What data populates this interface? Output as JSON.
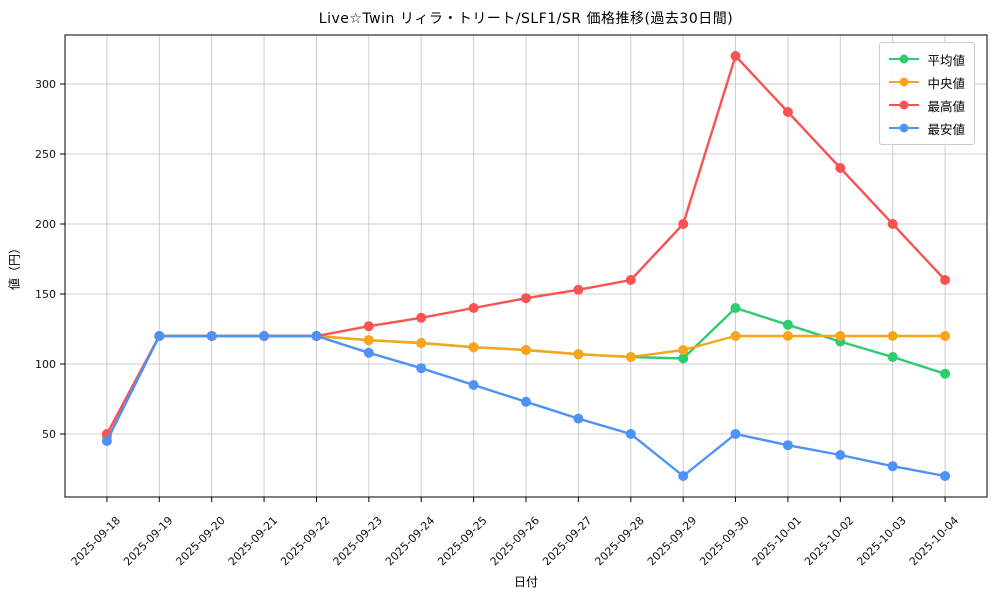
{
  "chart_data": {
    "type": "line",
    "title": "Live☆Twin リィラ・トリート/SLF1/SR 価格推移(過去30日間)",
    "xlabel": "日付",
    "ylabel": "値（円）",
    "x": [
      "2025-09-18",
      "2025-09-19",
      "2025-09-20",
      "2025-09-21",
      "2025-09-22",
      "2025-09-23",
      "2025-09-24",
      "2025-09-25",
      "2025-09-26",
      "2025-09-27",
      "2025-09-28",
      "2025-09-29",
      "2025-09-30",
      "2025-10-01",
      "2025-10-02",
      "2025-10-03",
      "2025-10-04"
    ],
    "series": [
      {
        "key": "average",
        "name": "平均値",
        "color": "#2ecc71",
        "values": [
          48,
          120,
          120,
          120,
          120,
          117,
          115,
          112,
          110,
          107,
          105,
          104,
          140,
          128,
          116,
          105,
          93
        ]
      },
      {
        "key": "median",
        "name": "中央値",
        "color": "#f9a51b",
        "values": [
          48,
          120,
          120,
          120,
          120,
          117,
          115,
          112,
          110,
          107,
          105,
          110,
          120,
          120,
          120,
          120,
          120
        ]
      },
      {
        "key": "max",
        "name": "最高値",
        "color": "#f95353",
        "values": [
          50,
          120,
          120,
          120,
          120,
          127,
          133,
          140,
          147,
          153,
          160,
          200,
          320,
          280,
          240,
          200,
          160
        ]
      },
      {
        "key": "min",
        "name": "最安値",
        "color": "#4d92f8",
        "values": [
          45,
          120,
          120,
          120,
          120,
          108,
          97,
          85,
          73,
          61,
          50,
          20,
          50,
          42,
          35,
          27,
          20
        ]
      }
    ],
    "yticks": [
      50,
      100,
      150,
      200,
      250,
      300
    ],
    "ylim": [
      5,
      335
    ],
    "grid": true,
    "grid_color": "#cccccc",
    "legend_position": "upper right",
    "x_tick_rotation": 45,
    "marker": "circle"
  }
}
